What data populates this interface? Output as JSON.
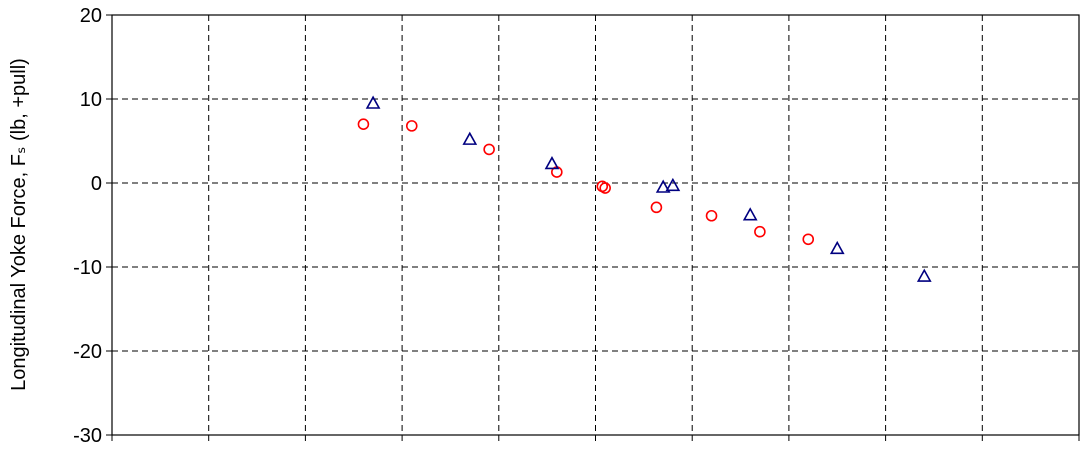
{
  "chart_data": {
    "type": "scatter",
    "title": "",
    "xlabel": "",
    "ylabel": "Longitudinal Yoke Force, Fₛ (lb, +pull)",
    "ylim": [
      -30,
      20
    ],
    "y_ticks": [
      "20",
      "10",
      "0",
      "-10",
      "-20",
      "-30"
    ],
    "xlim": [
      0,
      10
    ],
    "x_tick_labels_shown": false,
    "grid": true,
    "legend": "none",
    "series": [
      {
        "marker": "circle",
        "color": "#ff0000",
        "points": [
          {
            "x": 2.6,
            "y": 7.0
          },
          {
            "x": 3.1,
            "y": 6.8
          },
          {
            "x": 3.9,
            "y": 4.0
          },
          {
            "x": 4.6,
            "y": 1.3
          },
          {
            "x": 5.07,
            "y": -0.4
          },
          {
            "x": 5.1,
            "y": -0.6
          },
          {
            "x": 5.63,
            "y": -2.9
          },
          {
            "x": 6.2,
            "y": -3.9
          },
          {
            "x": 6.7,
            "y": -5.8
          },
          {
            "x": 7.2,
            "y": -6.7
          }
        ]
      },
      {
        "marker": "triangle",
        "color": "#000080",
        "points": [
          {
            "x": 2.7,
            "y": 9.5
          },
          {
            "x": 3.7,
            "y": 5.2
          },
          {
            "x": 4.55,
            "y": 2.3
          },
          {
            "x": 5.7,
            "y": -0.5
          },
          {
            "x": 5.8,
            "y": -0.3
          },
          {
            "x": 6.6,
            "y": -3.8
          },
          {
            "x": 7.5,
            "y": -7.8
          },
          {
            "x": 8.4,
            "y": -11.1
          }
        ]
      }
    ]
  }
}
